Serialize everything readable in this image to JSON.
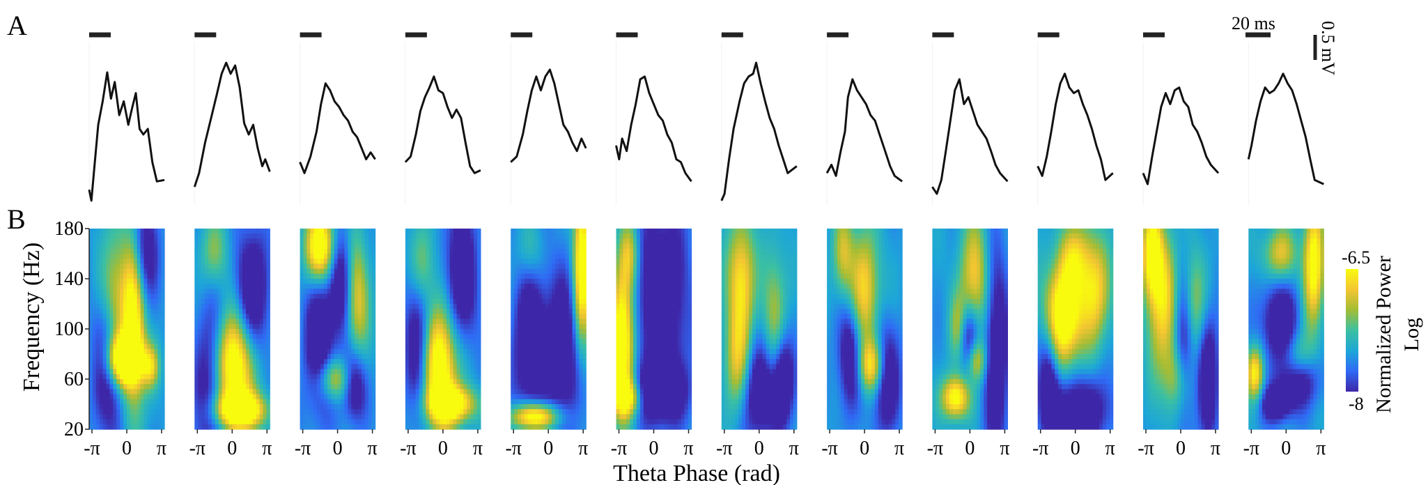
{
  "figure": {
    "panel_a_label": "A",
    "panel_b_label": "B",
    "scalebar_time_label": "20 ms",
    "scalebar_voltage_label": "0.5 mV",
    "panel_count": 12
  },
  "spectrogram": {
    "y_axis_label": "Frequency (Hz)",
    "y_ticks": [
      "180",
      "140",
      "100",
      "60",
      "20"
    ],
    "x_axis_label": "Theta Phase (rad)",
    "x_ticks": [
      "-π",
      "0",
      "π"
    ],
    "freq_range_hz": [
      20,
      180
    ]
  },
  "colorbar": {
    "max_label": "-6.5",
    "min_label": "-8",
    "title": "Normalized Power",
    "subtitle": "Log",
    "colors": [
      "#3e26a8",
      "#2f6bf5",
      "#1da6d8",
      "#3cc0a1",
      "#a5bd34",
      "#f3c532",
      "#f9fb0e"
    ]
  },
  "chart_data": {
    "type": "heatmap",
    "title": "",
    "xlabel": "Theta Phase (rad)",
    "ylabel": "Frequency (Hz)",
    "xlim": [
      -3.1416,
      3.1416
    ],
    "ylim": [
      20,
      180
    ],
    "clim": [
      -8,
      -6.5
    ],
    "panels": [
      {
        "blobs": [
          [
            -0.3,
            75,
            1.0,
            14,
            1.0
          ],
          [
            0.6,
            110,
            0.7,
            50,
            0.85
          ],
          [
            -1.0,
            120,
            0.8,
            40,
            0.55
          ],
          [
            2.0,
            70,
            0.5,
            12,
            0.5
          ]
        ],
        "gaps": [
          [
            -1.5,
            70,
            0.9,
            40
          ],
          [
            1.4,
            160,
            0.8,
            30
          ]
        ]
      },
      {
        "blobs": [
          [
            0.0,
            70,
            1.2,
            30,
            1.0
          ],
          [
            0.7,
            35,
            1.5,
            10,
            0.9
          ],
          [
            -1.5,
            160,
            0.8,
            20,
            0.35
          ]
        ],
        "gaps": [
          [
            -1.7,
            60,
            1.0,
            45
          ],
          [
            1.7,
            130,
            1.0,
            35
          ]
        ]
      },
      {
        "blobs": [
          [
            -1.4,
            165,
            0.9,
            20,
            0.95
          ],
          [
            1.6,
            125,
            0.7,
            35,
            0.55
          ],
          [
            -0.3,
            60,
            1.0,
            12,
            0.55
          ]
        ],
        "gaps": [
          [
            -1.5,
            90,
            0.9,
            40
          ],
          [
            0.3,
            140,
            0.7,
            30
          ],
          [
            1.4,
            55,
            0.7,
            20
          ]
        ]
      },
      {
        "blobs": [
          [
            -0.3,
            70,
            1.1,
            35,
            0.95
          ],
          [
            0.8,
            40,
            1.4,
            10,
            0.75
          ],
          [
            -1.7,
            150,
            0.7,
            25,
            0.45
          ]
        ],
        "gaps": [
          [
            -2.0,
            90,
            0.8,
            45
          ],
          [
            1.5,
            140,
            1.0,
            40
          ]
        ]
      },
      {
        "blobs": [
          [
            -1.1,
            30,
            1.4,
            8,
            1.0
          ],
          [
            2.8,
            150,
            0.5,
            45,
            0.9
          ],
          [
            -1.5,
            160,
            0.8,
            20,
            0.3
          ]
        ],
        "gaps": [
          [
            -1.5,
            90,
            1.0,
            50
          ],
          [
            1.2,
            80,
            1.0,
            45
          ]
        ]
      },
      {
        "blobs": [
          [
            -2.6,
            90,
            0.7,
            40,
            1.0
          ],
          [
            -2.2,
            45,
            0.9,
            10,
            0.6
          ],
          [
            -2.0,
            160,
            0.6,
            20,
            0.45
          ]
        ],
        "gaps": [
          [
            0.6,
            120,
            1.6,
            60
          ],
          [
            0.6,
            50,
            1.4,
            15
          ]
        ]
      },
      {
        "blobs": [
          [
            -1.5,
            140,
            0.8,
            35,
            0.65
          ],
          [
            -1.8,
            70,
            0.8,
            30,
            0.55
          ],
          [
            1.3,
            110,
            0.7,
            40,
            0.4
          ]
        ],
        "gaps": [
          [
            0.0,
            50,
            1.3,
            28
          ],
          [
            2.0,
            60,
            0.6,
            25
          ]
        ]
      },
      {
        "blobs": [
          [
            0.0,
            130,
            0.9,
            35,
            0.6
          ],
          [
            0.6,
            70,
            0.8,
            15,
            0.65
          ],
          [
            -1.8,
            160,
            0.6,
            25,
            0.45
          ]
        ],
        "gaps": [
          [
            -1.2,
            80,
            0.7,
            30
          ],
          [
            1.8,
            60,
            0.8,
            30
          ]
        ]
      },
      {
        "blobs": [
          [
            -1.2,
            45,
            0.8,
            12,
            0.8
          ],
          [
            0.4,
            140,
            0.9,
            35,
            0.55
          ],
          [
            0.5,
            75,
            0.6,
            12,
            0.55
          ],
          [
            -1.0,
            100,
            0.5,
            20,
            0.35
          ]
        ],
        "gaps": [
          [
            -0.1,
            90,
            0.6,
            20
          ],
          [
            2.2,
            80,
            0.7,
            60
          ]
        ]
      },
      {
        "blobs": [
          [
            -1.0,
            110,
            1.1,
            30,
            0.95
          ],
          [
            1.6,
            130,
            0.9,
            30,
            0.6
          ],
          [
            0.0,
            160,
            1.0,
            20,
            0.4
          ]
        ],
        "gaps": [
          [
            0.3,
            35,
            1.8,
            20
          ],
          [
            -2.2,
            60,
            0.6,
            30
          ]
        ]
      },
      {
        "blobs": [
          [
            -2.4,
            160,
            0.6,
            25,
            0.75
          ],
          [
            -1.5,
            120,
            0.9,
            40,
            0.6
          ],
          [
            -0.3,
            60,
            0.8,
            20,
            0.4
          ],
          [
            1.0,
            120,
            0.7,
            30,
            0.45
          ]
        ],
        "gaps": [
          [
            0.3,
            90,
            0.6,
            40
          ],
          [
            2.3,
            60,
            0.6,
            35
          ]
        ]
      },
      {
        "blobs": [
          [
            2.3,
            150,
            0.6,
            35,
            0.8
          ],
          [
            -2.6,
            65,
            0.5,
            15,
            0.7
          ],
          [
            -0.5,
            160,
            1.0,
            15,
            0.5
          ],
          [
            1.0,
            75,
            0.9,
            15,
            0.4
          ]
        ],
        "gaps": [
          [
            -0.5,
            105,
            1.1,
            22
          ],
          [
            1.0,
            60,
            1.2,
            15
          ],
          [
            -0.8,
            40,
            0.9,
            10
          ]
        ]
      }
    ],
    "waveforms": [
      [
        [
          0.0,
          0.08
        ],
        [
          0.03,
          0.0
        ],
        [
          0.07,
          0.25
        ],
        [
          0.12,
          0.55
        ],
        [
          0.18,
          0.72
        ],
        [
          0.24,
          0.93
        ],
        [
          0.29,
          0.74
        ],
        [
          0.34,
          0.86
        ],
        [
          0.4,
          0.62
        ],
        [
          0.46,
          0.72
        ],
        [
          0.52,
          0.55
        ],
        [
          0.57,
          0.67
        ],
        [
          0.62,
          0.78
        ],
        [
          0.67,
          0.52
        ],
        [
          0.72,
          0.48
        ],
        [
          0.78,
          0.52
        ],
        [
          0.84,
          0.28
        ],
        [
          0.9,
          0.14
        ],
        [
          1.0,
          0.15
        ]
      ],
      [
        [
          0.0,
          0.1
        ],
        [
          0.06,
          0.2
        ],
        [
          0.14,
          0.42
        ],
        [
          0.22,
          0.6
        ],
        [
          0.3,
          0.78
        ],
        [
          0.36,
          0.92
        ],
        [
          0.42,
          1.0
        ],
        [
          0.48,
          0.92
        ],
        [
          0.54,
          0.98
        ],
        [
          0.6,
          0.82
        ],
        [
          0.66,
          0.56
        ],
        [
          0.72,
          0.48
        ],
        [
          0.78,
          0.55
        ],
        [
          0.84,
          0.38
        ],
        [
          0.9,
          0.25
        ],
        [
          0.94,
          0.3
        ],
        [
          1.0,
          0.21
        ]
      ],
      [
        [
          0.0,
          0.28
        ],
        [
          0.06,
          0.2
        ],
        [
          0.14,
          0.32
        ],
        [
          0.22,
          0.5
        ],
        [
          0.28,
          0.7
        ],
        [
          0.34,
          0.85
        ],
        [
          0.4,
          0.8
        ],
        [
          0.46,
          0.72
        ],
        [
          0.52,
          0.68
        ],
        [
          0.58,
          0.62
        ],
        [
          0.64,
          0.58
        ],
        [
          0.7,
          0.5
        ],
        [
          0.76,
          0.46
        ],
        [
          0.82,
          0.38
        ],
        [
          0.88,
          0.3
        ],
        [
          0.94,
          0.35
        ],
        [
          1.0,
          0.3
        ]
      ],
      [
        [
          0.0,
          0.28
        ],
        [
          0.07,
          0.32
        ],
        [
          0.14,
          0.48
        ],
        [
          0.2,
          0.65
        ],
        [
          0.26,
          0.75
        ],
        [
          0.32,
          0.82
        ],
        [
          0.38,
          0.9
        ],
        [
          0.44,
          0.8
        ],
        [
          0.5,
          0.78
        ],
        [
          0.56,
          0.68
        ],
        [
          0.62,
          0.6
        ],
        [
          0.68,
          0.66
        ],
        [
          0.74,
          0.6
        ],
        [
          0.8,
          0.42
        ],
        [
          0.86,
          0.25
        ],
        [
          0.92,
          0.2
        ],
        [
          1.0,
          0.22
        ]
      ],
      [
        [
          0.0,
          0.28
        ],
        [
          0.08,
          0.32
        ],
        [
          0.16,
          0.48
        ],
        [
          0.22,
          0.65
        ],
        [
          0.28,
          0.8
        ],
        [
          0.34,
          0.9
        ],
        [
          0.4,
          0.8
        ],
        [
          0.46,
          0.9
        ],
        [
          0.52,
          0.95
        ],
        [
          0.58,
          0.85
        ],
        [
          0.64,
          0.7
        ],
        [
          0.7,
          0.55
        ],
        [
          0.76,
          0.5
        ],
        [
          0.82,
          0.42
        ],
        [
          0.88,
          0.36
        ],
        [
          0.94,
          0.45
        ],
        [
          1.0,
          0.38
        ]
      ],
      [
        [
          0.0,
          0.4
        ],
        [
          0.04,
          0.3
        ],
        [
          0.08,
          0.45
        ],
        [
          0.14,
          0.36
        ],
        [
          0.2,
          0.55
        ],
        [
          0.26,
          0.7
        ],
        [
          0.32,
          0.88
        ],
        [
          0.38,
          0.9
        ],
        [
          0.44,
          0.78
        ],
        [
          0.5,
          0.7
        ],
        [
          0.56,
          0.62
        ],
        [
          0.62,
          0.58
        ],
        [
          0.68,
          0.48
        ],
        [
          0.74,
          0.42
        ],
        [
          0.8,
          0.3
        ],
        [
          0.86,
          0.28
        ],
        [
          0.92,
          0.2
        ],
        [
          1.0,
          0.14
        ]
      ],
      [
        [
          0.0,
          0.0
        ],
        [
          0.04,
          0.05
        ],
        [
          0.1,
          0.3
        ],
        [
          0.16,
          0.52
        ],
        [
          0.24,
          0.72
        ],
        [
          0.3,
          0.85
        ],
        [
          0.36,
          0.9
        ],
        [
          0.42,
          0.92
        ],
        [
          0.46,
          1.0
        ],
        [
          0.52,
          0.85
        ],
        [
          0.58,
          0.72
        ],
        [
          0.64,
          0.6
        ],
        [
          0.7,
          0.52
        ],
        [
          0.76,
          0.4
        ],
        [
          0.82,
          0.3
        ],
        [
          0.88,
          0.2
        ],
        [
          1.0,
          0.25
        ]
      ],
      [
        [
          0.0,
          0.2
        ],
        [
          0.06,
          0.26
        ],
        [
          0.12,
          0.18
        ],
        [
          0.18,
          0.35
        ],
        [
          0.24,
          0.5
        ],
        [
          0.28,
          0.75
        ],
        [
          0.34,
          0.88
        ],
        [
          0.4,
          0.8
        ],
        [
          0.46,
          0.75
        ],
        [
          0.52,
          0.7
        ],
        [
          0.58,
          0.62
        ],
        [
          0.64,
          0.58
        ],
        [
          0.7,
          0.48
        ],
        [
          0.78,
          0.35
        ],
        [
          0.84,
          0.25
        ],
        [
          0.9,
          0.18
        ],
        [
          1.0,
          0.14
        ]
      ],
      [
        [
          0.0,
          0.1
        ],
        [
          0.06,
          0.05
        ],
        [
          0.12,
          0.15
        ],
        [
          0.18,
          0.36
        ],
        [
          0.24,
          0.58
        ],
        [
          0.3,
          0.8
        ],
        [
          0.36,
          0.88
        ],
        [
          0.42,
          0.7
        ],
        [
          0.48,
          0.75
        ],
        [
          0.54,
          0.65
        ],
        [
          0.6,
          0.55
        ],
        [
          0.66,
          0.5
        ],
        [
          0.72,
          0.45
        ],
        [
          0.78,
          0.36
        ],
        [
          0.84,
          0.26
        ],
        [
          0.9,
          0.2
        ],
        [
          1.0,
          0.14
        ]
      ],
      [
        [
          0.0,
          0.25
        ],
        [
          0.06,
          0.18
        ],
        [
          0.12,
          0.32
        ],
        [
          0.18,
          0.5
        ],
        [
          0.24,
          0.7
        ],
        [
          0.3,
          0.85
        ],
        [
          0.36,
          0.92
        ],
        [
          0.42,
          0.82
        ],
        [
          0.48,
          0.78
        ],
        [
          0.54,
          0.8
        ],
        [
          0.6,
          0.7
        ],
        [
          0.66,
          0.62
        ],
        [
          0.72,
          0.52
        ],
        [
          0.78,
          0.4
        ],
        [
          0.84,
          0.3
        ],
        [
          0.9,
          0.15
        ],
        [
          1.0,
          0.2
        ]
      ],
      [
        [
          0.0,
          0.2
        ],
        [
          0.06,
          0.12
        ],
        [
          0.12,
          0.32
        ],
        [
          0.18,
          0.5
        ],
        [
          0.24,
          0.68
        ],
        [
          0.3,
          0.78
        ],
        [
          0.36,
          0.7
        ],
        [
          0.42,
          0.8
        ],
        [
          0.48,
          0.82
        ],
        [
          0.54,
          0.72
        ],
        [
          0.6,
          0.68
        ],
        [
          0.66,
          0.55
        ],
        [
          0.72,
          0.5
        ],
        [
          0.78,
          0.42
        ],
        [
          0.84,
          0.32
        ],
        [
          0.9,
          0.26
        ],
        [
          1.0,
          0.2
        ]
      ],
      [
        [
          0.0,
          0.3
        ],
        [
          0.04,
          0.4
        ],
        [
          0.1,
          0.58
        ],
        [
          0.16,
          0.72
        ],
        [
          0.22,
          0.82
        ],
        [
          0.28,
          0.78
        ],
        [
          0.34,
          0.8
        ],
        [
          0.4,
          0.85
        ],
        [
          0.46,
          0.92
        ],
        [
          0.52,
          0.85
        ],
        [
          0.58,
          0.8
        ],
        [
          0.64,
          0.7
        ],
        [
          0.7,
          0.58
        ],
        [
          0.76,
          0.46
        ],
        [
          0.82,
          0.3
        ],
        [
          0.88,
          0.15
        ],
        [
          1.0,
          0.12
        ]
      ]
    ]
  }
}
